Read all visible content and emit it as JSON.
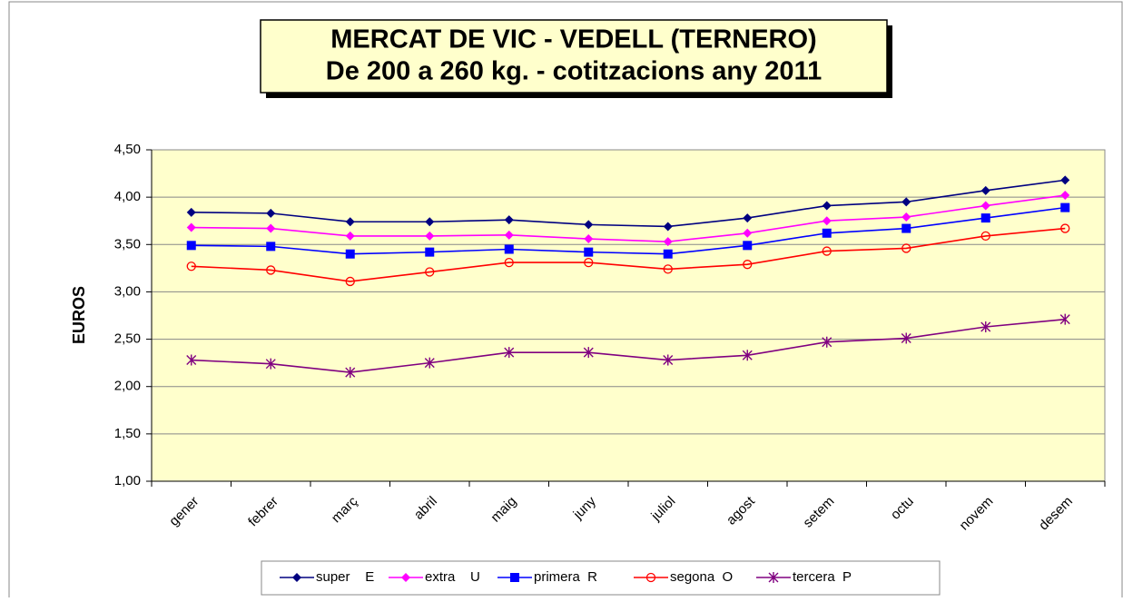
{
  "chart_data": {
    "type": "line",
    "title": "MERCAT DE VIC - VEDELL (TERNERO)",
    "subtitle": "De 200 a 260 kg. - cotitzacions any 2011",
    "y_label": "EUROS",
    "categories": [
      "gener",
      "febrer",
      "març",
      "abril",
      "maig",
      "juny",
      "juliol",
      "agost",
      "setem",
      "octu",
      "novem",
      "desem"
    ],
    "series": [
      {
        "name": "super    E",
        "color": "#000080",
        "marker": "diamond",
        "values": [
          3.84,
          3.83,
          3.74,
          3.74,
          3.76,
          3.71,
          3.69,
          3.78,
          3.91,
          3.95,
          4.07,
          4.18
        ]
      },
      {
        "name": "extra    U",
        "color": "#ff00ff",
        "marker": "diamond",
        "values": [
          3.68,
          3.67,
          3.59,
          3.59,
          3.6,
          3.56,
          3.53,
          3.62,
          3.75,
          3.79,
          3.91,
          4.02
        ]
      },
      {
        "name": "primera  R",
        "color": "#0000ff",
        "marker": "square",
        "values": [
          3.49,
          3.48,
          3.4,
          3.42,
          3.45,
          3.42,
          3.4,
          3.49,
          3.62,
          3.67,
          3.78,
          3.89
        ]
      },
      {
        "name": "segona  O",
        "color": "#ff0000",
        "marker": "circle",
        "values": [
          3.27,
          3.23,
          3.11,
          3.21,
          3.31,
          3.31,
          3.24,
          3.29,
          3.43,
          3.46,
          3.59,
          3.67
        ]
      },
      {
        "name": "tercera  P",
        "color": "#800080",
        "marker": "asterisk",
        "values": [
          2.28,
          2.24,
          2.15,
          2.25,
          2.36,
          2.36,
          2.28,
          2.33,
          2.47,
          2.51,
          2.63,
          2.71
        ]
      }
    ],
    "ylim": [
      1,
      4.5
    ],
    "yticks": [
      {
        "value": 1,
        "label": "1,00"
      },
      {
        "value": 1.5,
        "label": "1,50"
      },
      {
        "value": 2,
        "label": "2,00"
      },
      {
        "value": 2.5,
        "label": "2,50"
      },
      {
        "value": 3,
        "label": "3,00"
      },
      {
        "value": 3.5,
        "label": "3,50"
      },
      {
        "value": 4,
        "label": "4,00"
      },
      {
        "value": 4.5,
        "label": "4,50"
      }
    ],
    "grid": true,
    "legend": "bottom"
  }
}
